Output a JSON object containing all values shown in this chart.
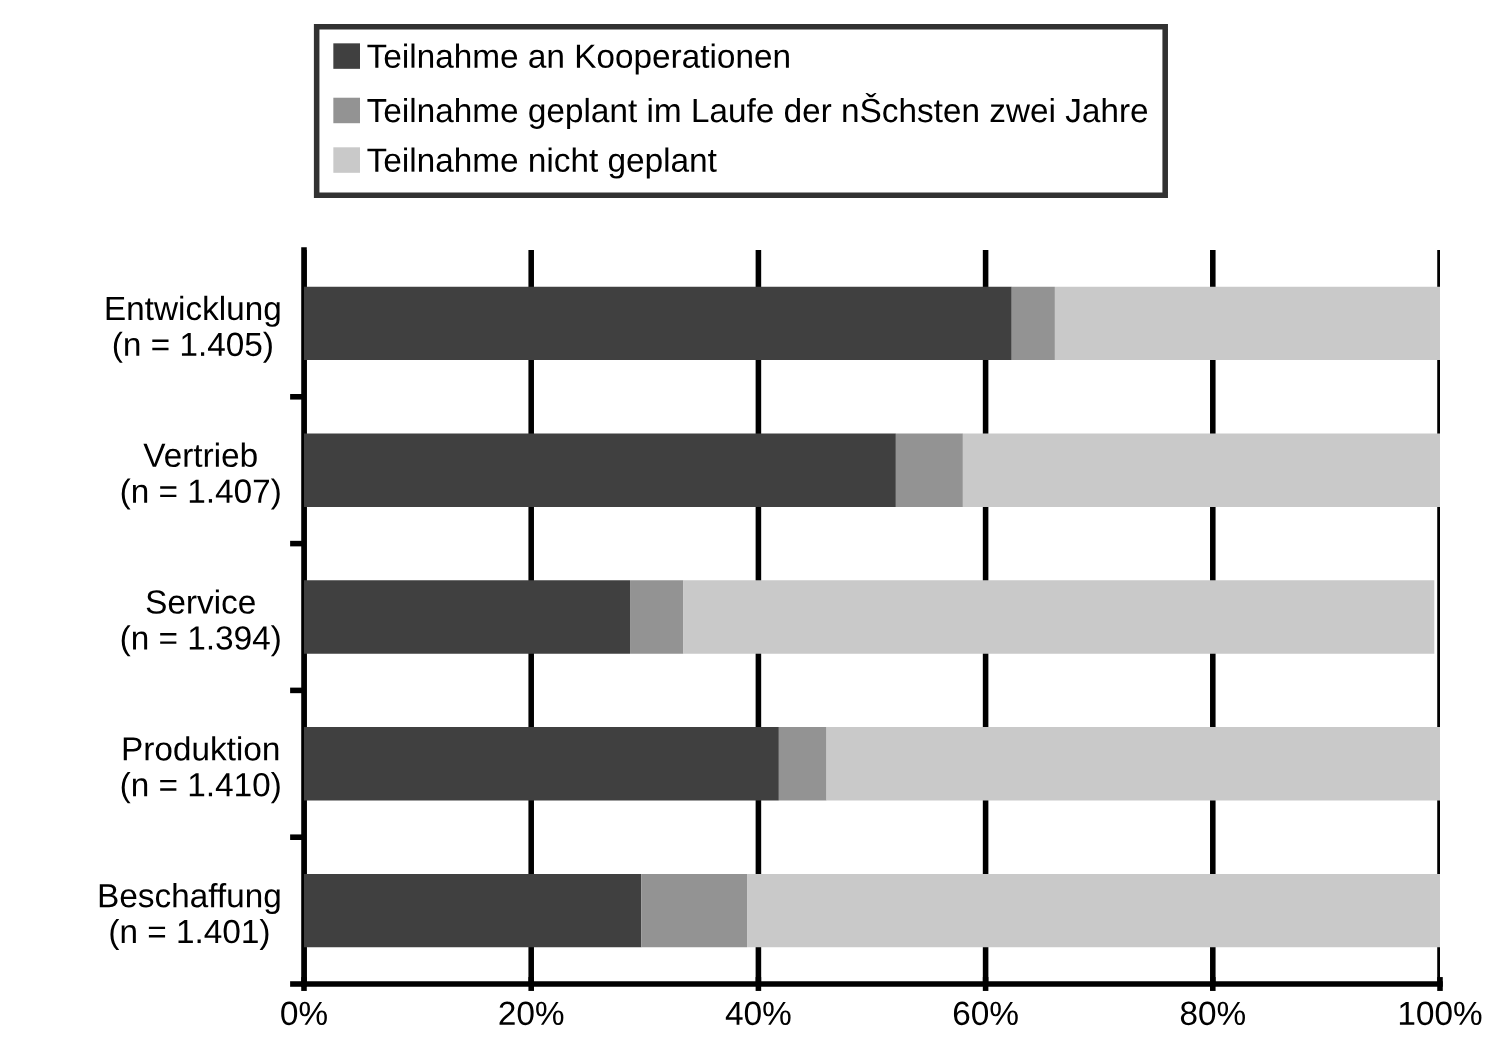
{
  "chart_data": {
    "type": "bar",
    "orientation": "horizontal",
    "stacked": true,
    "categories": [
      "Entwicklung\n(n = 1.405)",
      "Vertrieb\n(n = 1.407)",
      "Service\n(n = 1.394)",
      "Produktion\n(n = 1.410)",
      "Beschaffung\n(n = 1.401)"
    ],
    "series": [
      {
        "name": "Teilnahme an Kooperationen",
        "color": "#404040",
        "values": [
          62.3,
          52.1,
          28.7,
          41.8,
          29.7
        ]
      },
      {
        "name": "Teilnahme geplant im Laufe der nŠchsten zwei Jahre",
        "color": "#939393",
        "values": [
          3.8,
          5.9,
          4.7,
          4.2,
          9.3
        ]
      },
      {
        "name": "Teilnahme nicht geplant",
        "color": "#c9c9c9",
        "values": [
          33.9,
          42.0,
          66.1,
          54.0,
          61.0
        ]
      }
    ],
    "xlim": [
      0,
      100
    ],
    "xticks": [
      {
        "value": 0,
        "label": "0%"
      },
      {
        "value": 20,
        "label": "20%"
      },
      {
        "value": 40,
        "label": "40%"
      },
      {
        "value": 60,
        "label": "60%"
      },
      {
        "value": 80,
        "label": "80%"
      },
      {
        "value": 100,
        "label": "100%"
      }
    ],
    "grid": "x",
    "legend": "top"
  }
}
